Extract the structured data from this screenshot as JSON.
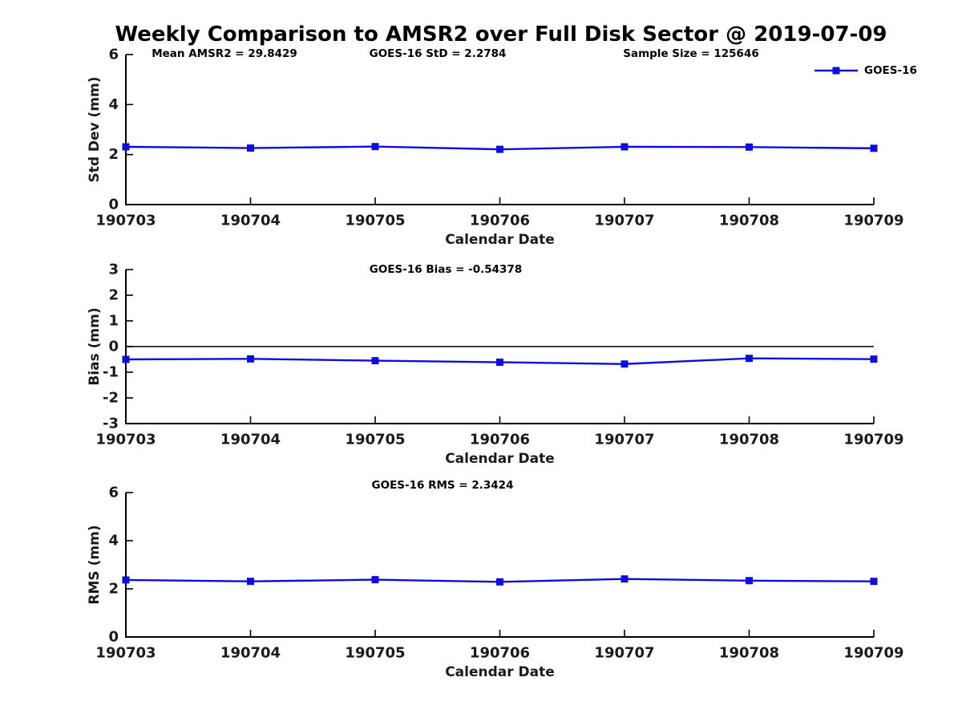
{
  "title": "Weekly Comparison to AMSR2 over Full Disk Sector @ 2019-07-09",
  "colors": {
    "series_line": "#0d0ddd",
    "axis": "#000000",
    "tick_label": "#1a1a1a",
    "annotation": "#000000",
    "zero_line": "#000000"
  },
  "chart_data": [
    {
      "type": "line",
      "name": "std-dev",
      "annotations": [
        "Mean AMSR2 = 29.8429",
        "GOES-16 StD = 2.2784",
        "Sample Size = 125646"
      ],
      "categories": [
        "190703",
        "190704",
        "190705",
        "190706",
        "190707",
        "190708",
        "190709"
      ],
      "series": [
        {
          "name": "GOES-16",
          "marker": "square",
          "values": [
            2.31,
            2.26,
            2.32,
            2.21,
            2.31,
            2.3,
            2.25
          ]
        }
      ],
      "xlabel": "Calendar Date",
      "ylabel": "Std Dev (mm)",
      "ylim": [
        0,
        6
      ],
      "yticks": [
        0,
        2,
        4,
        6
      ],
      "grid": false,
      "zero_line": false,
      "legend": {
        "label": "GOES-16",
        "position": "top-right"
      }
    },
    {
      "type": "line",
      "name": "bias",
      "annotations": [
        "GOES-16 Bias  = -0.54378"
      ],
      "categories": [
        "190703",
        "190704",
        "190705",
        "190706",
        "190707",
        "190708",
        "190709"
      ],
      "series": [
        {
          "name": "GOES-16",
          "marker": "square",
          "values": [
            -0.5,
            -0.48,
            -0.55,
            -0.61,
            -0.68,
            -0.46,
            -0.49
          ]
        }
      ],
      "xlabel": "Calendar Date",
      "ylabel": "Bias (mm)",
      "ylim": [
        -3,
        3
      ],
      "yticks": [
        -3,
        -2,
        -1,
        0,
        1,
        2,
        3
      ],
      "grid": false,
      "zero_line": true,
      "legend": null
    },
    {
      "type": "line",
      "name": "rms",
      "annotations": [
        "GOES-16 RMS = 2.3424"
      ],
      "categories": [
        "190703",
        "190704",
        "190705",
        "190706",
        "190707",
        "190708",
        "190709"
      ],
      "series": [
        {
          "name": "GOES-16",
          "marker": "square",
          "values": [
            2.37,
            2.31,
            2.38,
            2.29,
            2.41,
            2.34,
            2.31
          ]
        }
      ],
      "xlabel": "Calendar Date",
      "ylabel": "RMS (mm)",
      "ylim": [
        0,
        6
      ],
      "yticks": [
        0,
        2,
        4,
        6
      ],
      "grid": false,
      "zero_line": false,
      "legend": null
    }
  ]
}
